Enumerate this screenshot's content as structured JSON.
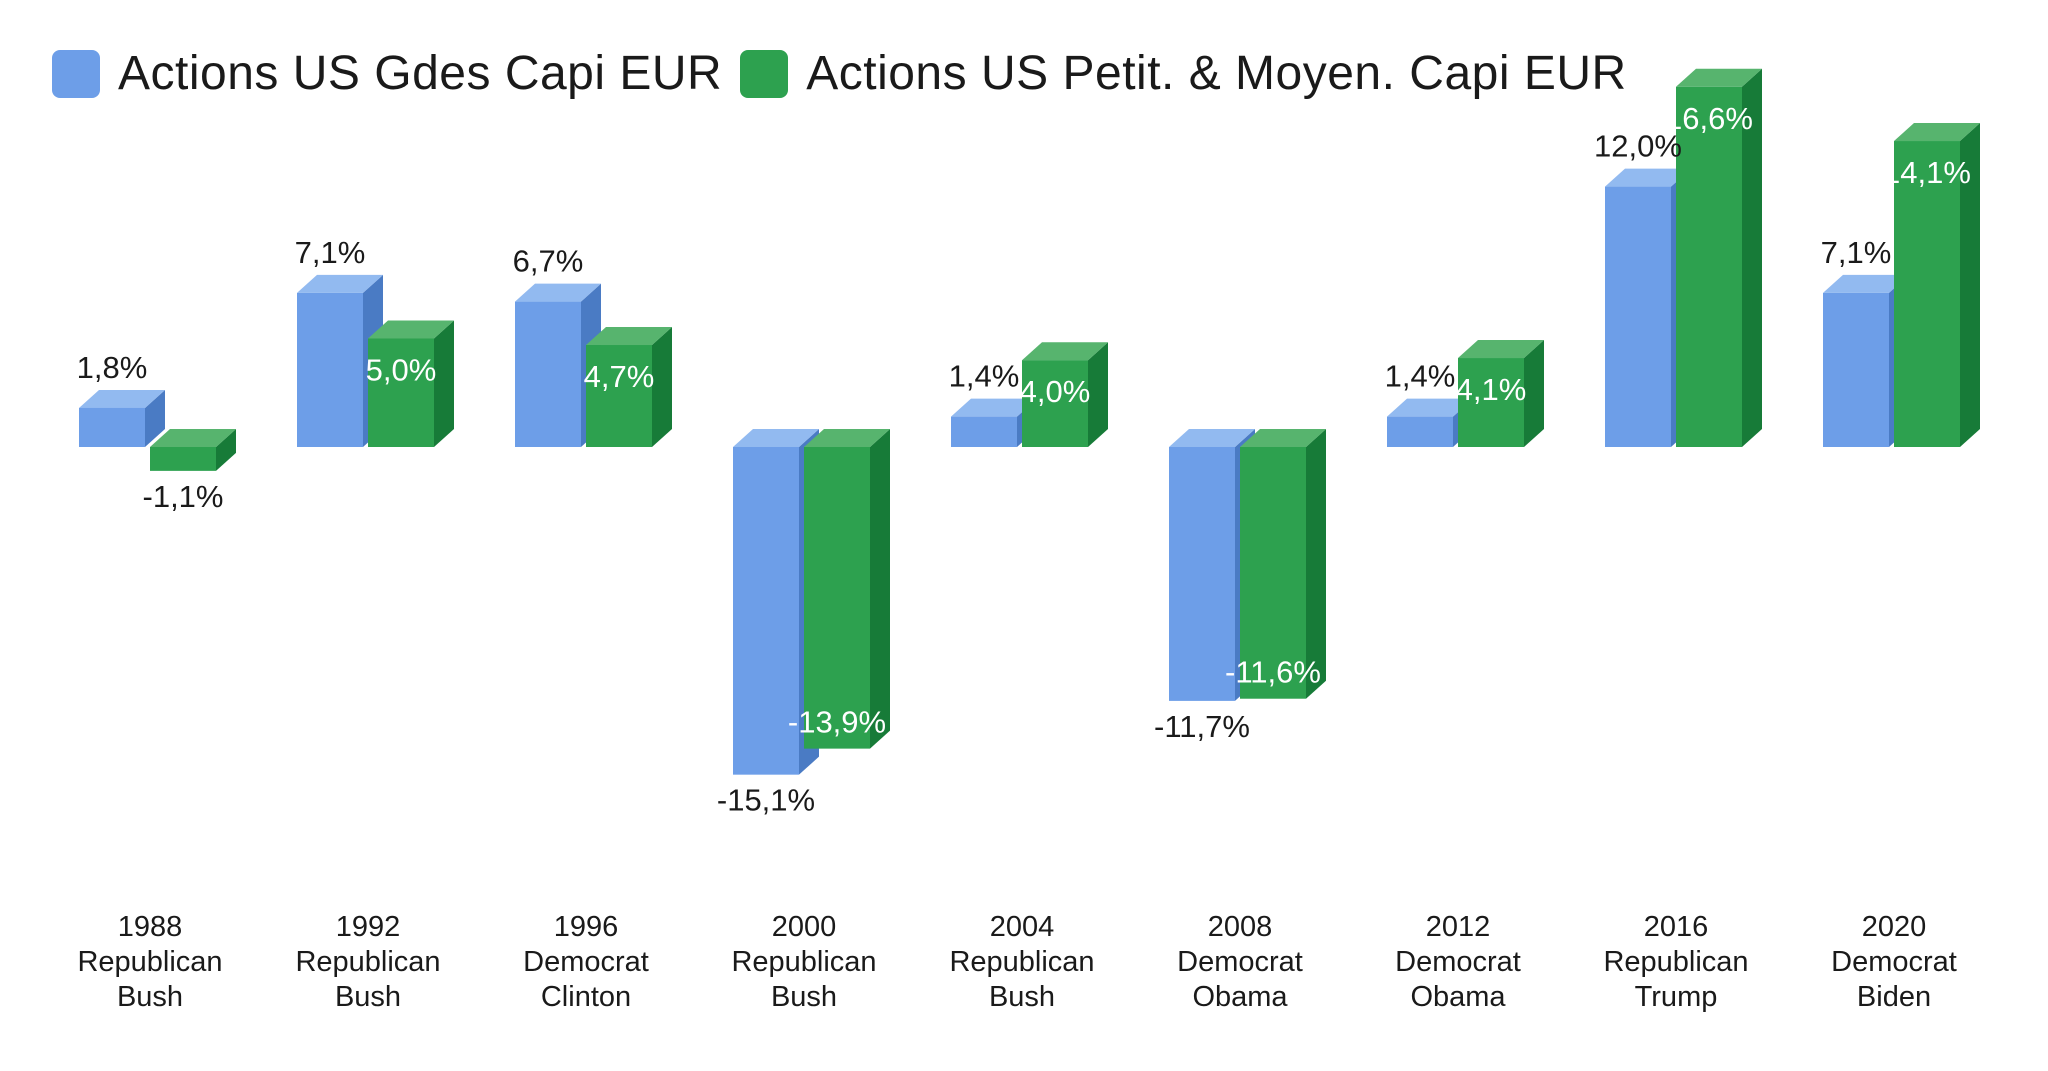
{
  "legend": {
    "items": [
      {
        "label": "Actions US Gdes Capi EUR",
        "color": "#6d9ee8"
      },
      {
        "label": "Actions US Petit. & Moyen. Capi EUR",
        "color": "#2da14f"
      }
    ]
  },
  "chart_data": {
    "type": "bar",
    "title": "",
    "grid": false,
    "axes_hidden": true,
    "legend_position": "top-left",
    "background": "#ffffff",
    "value_format": "comma-decimal-percent",
    "ylim": [
      -16,
      18
    ],
    "categories": [
      {
        "year": "1988",
        "party": "Republican",
        "president": "Bush"
      },
      {
        "year": "1992",
        "party": "Republican",
        "president": "Bush"
      },
      {
        "year": "1996",
        "party": "Democrat",
        "president": "Clinton"
      },
      {
        "year": "2000",
        "party": "Republican",
        "president": "Bush"
      },
      {
        "year": "2004",
        "party": "Republican",
        "president": "Bush"
      },
      {
        "year": "2008",
        "party": "Democrat",
        "president": "Obama"
      },
      {
        "year": "2012",
        "party": "Democrat",
        "president": "Obama"
      },
      {
        "year": "2016",
        "party": "Republican",
        "president": "Trump"
      },
      {
        "year": "2020",
        "party": "Democrat",
        "president": "Biden"
      }
    ],
    "series": [
      {
        "name": "Actions US Gdes Capi EUR",
        "values": [
          1.8,
          7.1,
          6.7,
          -15.1,
          1.4,
          -11.7,
          1.4,
          12.0,
          7.1
        ],
        "labels": [
          "1,8%",
          "7,1%",
          "6,7%",
          "-15,1%",
          "1,4%",
          "-11,7%",
          "1,4%",
          "12,0%",
          "7,1%"
        ],
        "color_front": "#6d9ee8",
        "color_top": "#92baf0",
        "color_side": "#4a7bc4",
        "label_color_outside": "#1a1a1a"
      },
      {
        "name": "Actions US Petit. & Moyen. Capi EUR",
        "values": [
          -1.1,
          5.0,
          4.7,
          -13.9,
          4.0,
          -11.6,
          4.1,
          16.6,
          14.1
        ],
        "labels": [
          "-1,1%",
          "5,0%",
          "4,7%",
          "-13,9%",
          "4,0%",
          "-11,6%",
          "4,1%",
          "16,6%",
          "14,1%"
        ],
        "color_front": "#2da14f",
        "color_top": "#57b46e",
        "color_side": "#177b38",
        "label_color_inside": "#ffffff",
        "label_color_outside": "#1a1a1a"
      }
    ]
  }
}
